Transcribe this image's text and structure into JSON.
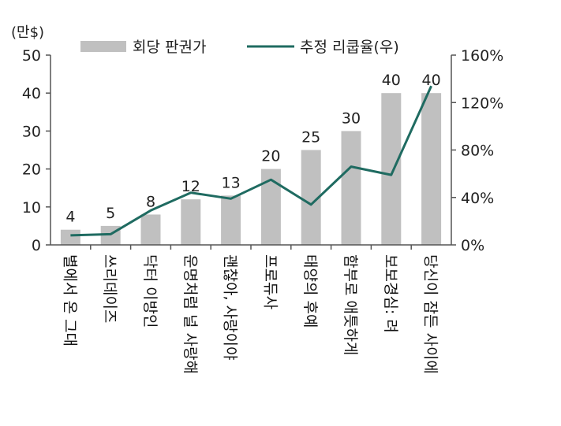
{
  "chart_data": {
    "type": "bar",
    "categories": [
      "별에서 온 그대",
      "쓰리데이즈",
      "닥터 이방인",
      "운명처럼 널 사랑해",
      "괜찮아, 사랑이야",
      "프로듀사",
      "태양의 후예",
      "함부로 애틋하게",
      "보보경심: 려",
      "당신이 잠든 사이에"
    ],
    "series": [
      {
        "name": "회당 판권가",
        "axis": "left",
        "type": "bar",
        "values": [
          4,
          5,
          8,
          12,
          13,
          20,
          25,
          30,
          40,
          40
        ]
      },
      {
        "name": "추정 리쿱율(우)",
        "axis": "right",
        "type": "line",
        "values": [
          8,
          9,
          29,
          44,
          39,
          55,
          34,
          66,
          59,
          134
        ]
      }
    ],
    "left_axis": {
      "unit_label": "(만$)",
      "min": 0,
      "max": 50,
      "ticks": [
        0,
        10,
        20,
        30,
        40,
        50
      ],
      "tick_labels": [
        "0",
        "10",
        "20",
        "30",
        "40",
        "50"
      ]
    },
    "right_axis": {
      "min": 0,
      "max": 160,
      "ticks": [
        0,
        40,
        80,
        120,
        160
      ],
      "tick_labels": [
        "0%",
        "40%",
        "80%",
        "120%",
        "160%"
      ]
    },
    "data_labels": [
      "4",
      "5",
      "8",
      "12",
      "13",
      "20",
      "25",
      "30",
      "40",
      "40"
    ],
    "legend_position": "top",
    "colors": {
      "bar": "#c0c0c0",
      "line": "#1f6b61",
      "axis": "#555555"
    }
  }
}
